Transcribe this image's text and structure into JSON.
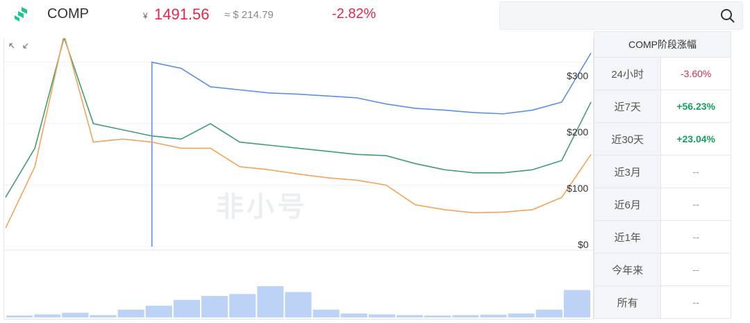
{
  "header": {
    "coin_name": "COMP",
    "price_cny_symbol": "¥",
    "price_cny": "1491.56",
    "price_usd": "≈ $ 214.79",
    "change": "-2.82%"
  },
  "chart": {
    "watermark": "非小号",
    "y_axis_labels": [
      "$300",
      "$200",
      "$100",
      "$0"
    ]
  },
  "stats": {
    "title": "COMP阶段涨幅",
    "rows": [
      {
        "label": "24小时",
        "value": "-3.60%"
      },
      {
        "label": "近7天",
        "value": "+56.23%"
      },
      {
        "label": "近30天",
        "value": "+23.04%"
      },
      {
        "label": "近3月",
        "value": "--"
      },
      {
        "label": "近6月",
        "value": "--"
      },
      {
        "label": "近1年",
        "value": "--"
      },
      {
        "label": "今年来",
        "value": "--"
      },
      {
        "label": "所有",
        "value": "--"
      }
    ]
  },
  "colors": {
    "accent_red": "#e0284a",
    "accent_green": "#13a05a",
    "series_blue": "#5b8fe8",
    "series_green": "#3f9e72",
    "series_orange": "#f4a35a"
  },
  "chart_data": {
    "type": "line",
    "y_ticks": [
      "$300",
      "$200",
      "$100",
      "$0"
    ],
    "ylim": [
      0,
      330
    ],
    "x": [
      0,
      5,
      10,
      15,
      20,
      25,
      30,
      35,
      40,
      45,
      50,
      55,
      60,
      65,
      70,
      75,
      80,
      85,
      90,
      95,
      100
    ],
    "series": [
      {
        "values": [
          null,
          null,
          null,
          null,
          null,
          300,
          290,
          260,
          255,
          250,
          248,
          245,
          242,
          232,
          225,
          222,
          218,
          216,
          222,
          235,
          315
        ]
      },
      {
        "values": [
          80,
          160,
          340,
          200,
          190,
          180,
          175,
          200,
          170,
          165,
          160,
          155,
          150,
          148,
          135,
          125,
          120,
          120,
          125,
          140,
          235
        ]
      },
      {
        "values": [
          30,
          130,
          345,
          170,
          175,
          170,
          160,
          160,
          130,
          125,
          118,
          112,
          108,
          100,
          68,
          60,
          55,
          56,
          60,
          80,
          150
        ]
      }
    ],
    "volume": [
      5,
      8,
      12,
      6,
      20,
      30,
      45,
      55,
      60,
      80,
      65,
      20,
      10,
      8,
      6,
      5,
      6,
      7,
      10,
      20,
      70
    ]
  }
}
